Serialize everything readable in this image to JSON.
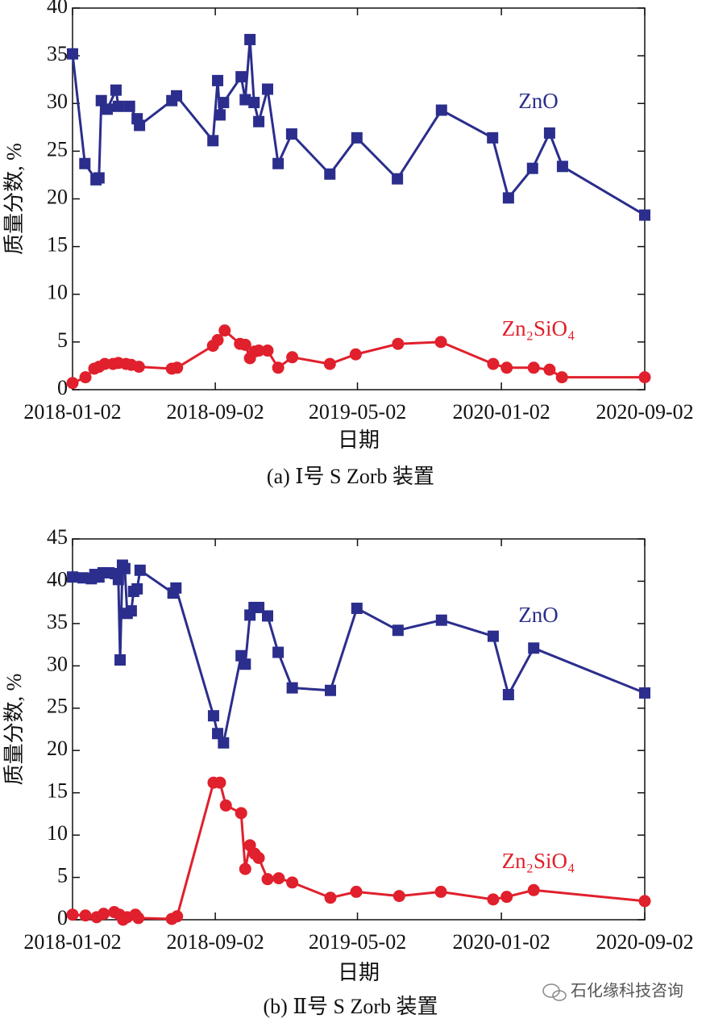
{
  "chart_data": [
    {
      "type": "line",
      "caption": "(a) Ⅰ号 S Zorb 装置",
      "x_label": "日期",
      "y_label": "质量分数, %",
      "xlim": [
        "2018-01-02",
        "2020-09-02"
      ],
      "xticks": [
        "2018-01-02",
        "2018-09-02",
        "2019-05-02",
        "2020-01-02",
        "2020-09-02"
      ],
      "ylim": [
        0,
        40
      ],
      "yticks": [
        0,
        5,
        10,
        15,
        20,
        25,
        30,
        35,
        40
      ],
      "series": [
        {
          "name": "ZnO",
          "color": "#2b2e8c",
          "marker": "square",
          "x": [
            "2018-01-02",
            "2018-01-23",
            "2018-02-11",
            "2018-02-16",
            "2018-02-20",
            "2018-03-02",
            "2018-03-17",
            "2018-03-21",
            "2018-04-09",
            "2018-04-22",
            "2018-04-26",
            "2018-06-20",
            "2018-06-28",
            "2018-08-29",
            "2018-09-06",
            "2018-09-10",
            "2018-09-16",
            "2018-10-16",
            "2018-10-23",
            "2018-10-31",
            "2018-11-07",
            "2018-11-15",
            "2018-11-30",
            "2018-12-18",
            "2019-01-10",
            "2019-03-16",
            "2019-05-01",
            "2019-07-09",
            "2019-09-22",
            "2019-12-18",
            "2020-01-14",
            "2020-02-24",
            "2020-03-24",
            "2020-04-15",
            "2020-09-02"
          ],
          "values": [
            35.2,
            23.7,
            22.0,
            22.2,
            30.3,
            29.4,
            31.4,
            29.7,
            29.7,
            28.4,
            27.7,
            30.3,
            30.8,
            26.1,
            32.4,
            28.8,
            30.1,
            32.8,
            30.4,
            36.7,
            30.1,
            28.1,
            31.5,
            23.7,
            26.8,
            22.6,
            26.4,
            22.1,
            29.3,
            26.4,
            20.1,
            23.2,
            26.9,
            23.4,
            18.3
          ]
        },
        {
          "name": "Zn₂SiO₄",
          "color": "#e0202c",
          "marker": "circle",
          "x": [
            "2018-01-02",
            "2018-01-24",
            "2018-02-08",
            "2018-02-16",
            "2018-02-26",
            "2018-03-12",
            "2018-03-21",
            "2018-04-03",
            "2018-04-12",
            "2018-04-25",
            "2018-06-20",
            "2018-06-29",
            "2018-08-29",
            "2018-09-06",
            "2018-09-18",
            "2018-10-14",
            "2018-10-23",
            "2018-10-31",
            "2018-11-08",
            "2018-11-15",
            "2018-11-30",
            "2018-12-18",
            "2019-01-11",
            "2019-03-16",
            "2019-04-29",
            "2019-07-10",
            "2019-09-21",
            "2019-12-19",
            "2020-01-11",
            "2020-02-26",
            "2020-03-24",
            "2020-04-14",
            "2020-09-02"
          ],
          "values": [
            0.7,
            1.3,
            2.2,
            2.4,
            2.7,
            2.7,
            2.8,
            2.7,
            2.6,
            2.4,
            2.2,
            2.3,
            4.6,
            5.2,
            6.2,
            4.8,
            4.7,
            3.3,
            4.0,
            4.1,
            4.1,
            2.3,
            3.4,
            2.7,
            3.7,
            4.8,
            5.0,
            2.7,
            2.3,
            2.3,
            2.1,
            1.3,
            1.3
          ]
        }
      ]
    },
    {
      "type": "line",
      "caption": "(b) Ⅱ号 S Zorb 装置",
      "x_label": "日期",
      "y_label": "质量分数, %",
      "xlim": [
        "2018-01-02",
        "2020-09-02"
      ],
      "xticks": [
        "2018-01-02",
        "2018-09-02",
        "2019-05-02",
        "2020-01-02",
        "2020-09-02"
      ],
      "ylim": [
        0,
        45
      ],
      "yticks": [
        0,
        5,
        10,
        15,
        20,
        25,
        30,
        35,
        40,
        45
      ],
      "series": [
        {
          "name": "ZnO",
          "color": "#2b2e8c",
          "marker": "square",
          "x": [
            "2018-01-02",
            "2018-01-20",
            "2018-02-03",
            "2018-02-09",
            "2018-02-16",
            "2018-02-23",
            "2018-03-05",
            "2018-03-16",
            "2018-03-21",
            "2018-03-24",
            "2018-03-28",
            "2018-04-01",
            "2018-04-05",
            "2018-04-12",
            "2018-04-16",
            "2018-04-22",
            "2018-04-27",
            "2018-06-22",
            "2018-06-27",
            "2018-08-30",
            "2018-09-06",
            "2018-09-16",
            "2018-10-16",
            "2018-10-23",
            "2018-10-31",
            "2018-11-07",
            "2018-11-15",
            "2018-11-30",
            "2018-12-18",
            "2019-01-11",
            "2019-03-17",
            "2019-05-01",
            "2019-07-10",
            "2019-09-22",
            "2019-12-19",
            "2020-01-14",
            "2020-02-26",
            "2020-09-02"
          ],
          "values": [
            40.5,
            40.4,
            40.3,
            40.8,
            40.5,
            41.0,
            41.0,
            40.9,
            40.2,
            30.7,
            41.9,
            41.5,
            36.2,
            36.5,
            38.8,
            39.1,
            41.3,
            38.6,
            39.2,
            24.1,
            22.0,
            20.9,
            31.2,
            30.2,
            36.0,
            36.9,
            36.9,
            35.9,
            31.6,
            27.4,
            27.1,
            36.8,
            34.2,
            35.4,
            33.5,
            26.6,
            32.1,
            26.8
          ]
        },
        {
          "name": "Zn₂SiO₄",
          "color": "#e0202c",
          "marker": "circle",
          "x": [
            "2018-01-02",
            "2018-01-24",
            "2018-02-12",
            "2018-02-24",
            "2018-03-14",
            "2018-03-23",
            "2018-03-29",
            "2018-04-05",
            "2018-04-19",
            "2018-04-24",
            "2018-06-20",
            "2018-06-29",
            "2018-08-30",
            "2018-09-10",
            "2018-09-20",
            "2018-10-16",
            "2018-10-23",
            "2018-10-31",
            "2018-11-08",
            "2018-11-15",
            "2018-11-30",
            "2018-12-19",
            "2019-01-11",
            "2019-03-17",
            "2019-04-30",
            "2019-07-12",
            "2019-09-21",
            "2019-12-19",
            "2020-01-11",
            "2020-02-26",
            "2020-09-02"
          ],
          "values": [
            0.6,
            0.5,
            0.3,
            0.7,
            0.9,
            0.6,
            0.0,
            0.3,
            0.6,
            0.2,
            0.1,
            0.4,
            16.2,
            16.2,
            13.5,
            12.6,
            6.0,
            8.8,
            7.8,
            7.3,
            4.8,
            4.9,
            4.4,
            2.6,
            3.3,
            2.8,
            3.3,
            2.4,
            2.7,
            3.5,
            2.2
          ]
        }
      ]
    }
  ],
  "watermark": "石化缘科技咨询"
}
